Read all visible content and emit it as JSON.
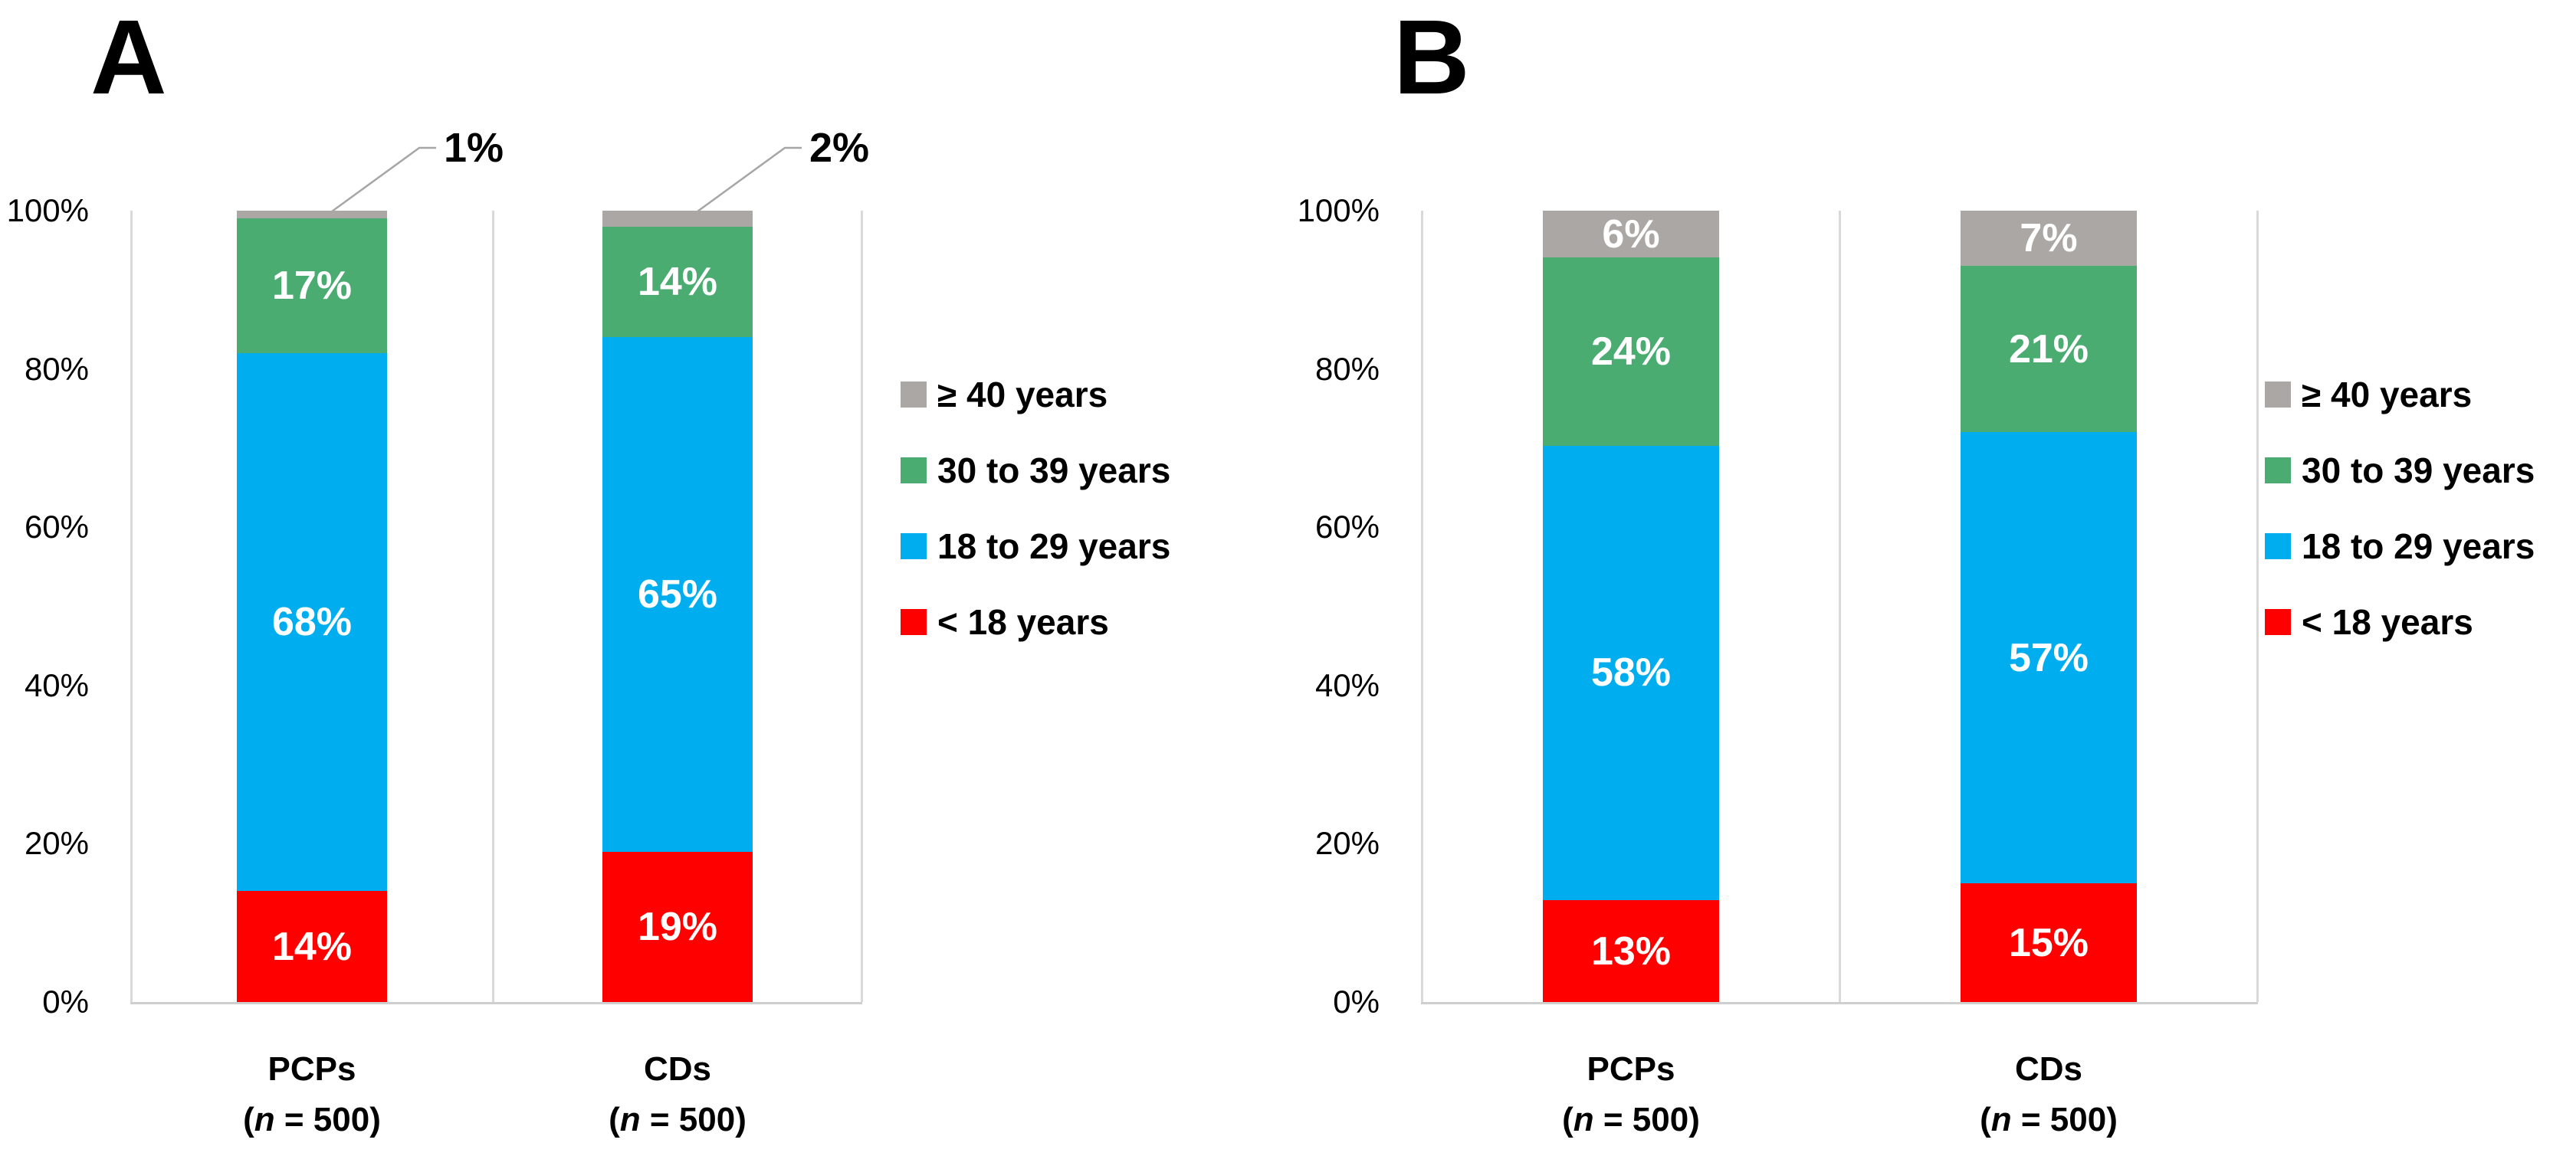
{
  "page": {
    "background": "#ffffff"
  },
  "colors": {
    "red": "#fe0000",
    "blue": "#00aeef",
    "green": "#4bac72",
    "gray": "#aba7a4",
    "plot_border": "#d9d9d9",
    "baseline": "#cfcfcf",
    "leader_line": "#a6a6a6",
    "axis_text": "#000000",
    "segment_label_text": "#ffffff"
  },
  "legend": {
    "items": [
      {
        "label": "≥ 40 years",
        "color_key": "gray"
      },
      {
        "label": "30 to 39 years",
        "color_key": "green"
      },
      {
        "label": "18 to 29 years",
        "color_key": "blue"
      },
      {
        "label": "< 18 years",
        "color_key": "red"
      }
    ]
  },
  "chart_data": [
    {
      "type": "bar",
      "stacked": true,
      "panel_label": "A",
      "categories": [
        "PCPs",
        "CDs"
      ],
      "category_sublabels": [
        "(n = 500)",
        "(n = 500)"
      ],
      "series": [
        {
          "name": "< 18 years",
          "color_key": "red",
          "values": [
            14,
            19
          ],
          "labels": [
            "14%",
            "19%"
          ],
          "label_inside": [
            true,
            true
          ]
        },
        {
          "name": "18 to 29 years",
          "color_key": "blue",
          "values": [
            68,
            65
          ],
          "labels": [
            "68%",
            "65%"
          ],
          "label_inside": [
            true,
            true
          ]
        },
        {
          "name": "30 to 39 years",
          "color_key": "green",
          "values": [
            17,
            14
          ],
          "labels": [
            "17%",
            "14%"
          ],
          "label_inside": [
            true,
            true
          ]
        },
        {
          "name": "≥ 40 years",
          "color_key": "gray",
          "values": [
            1,
            2
          ],
          "labels": [
            "1%",
            "2%"
          ],
          "label_inside": [
            false,
            false
          ]
        }
      ],
      "callouts": [
        {
          "category_index": 0,
          "text": "1%"
        },
        {
          "category_index": 1,
          "text": "2%"
        }
      ],
      "y_axis": {
        "min": 0,
        "max": 100,
        "ticks": [
          "0%",
          "20%",
          "40%",
          "60%",
          "80%",
          "100%"
        ]
      },
      "grid": false,
      "legend_position": "right"
    },
    {
      "type": "bar",
      "stacked": true,
      "panel_label": "B",
      "categories": [
        "PCPs",
        "CDs"
      ],
      "category_sublabels": [
        "(n = 500)",
        "(n = 500)"
      ],
      "series": [
        {
          "name": "< 18 years",
          "color_key": "red",
          "values": [
            13,
            15
          ],
          "labels": [
            "13%",
            "15%"
          ],
          "label_inside": [
            true,
            true
          ]
        },
        {
          "name": "18 to 29 years",
          "color_key": "blue",
          "values": [
            58,
            57
          ],
          "labels": [
            "58%",
            "57%"
          ],
          "label_inside": [
            true,
            true
          ]
        },
        {
          "name": "30 to 39 years",
          "color_key": "green",
          "values": [
            24,
            21
          ],
          "labels": [
            "24%",
            "21%"
          ],
          "label_inside": [
            true,
            true
          ]
        },
        {
          "name": "≥ 40 years",
          "color_key": "gray",
          "values": [
            6,
            7
          ],
          "labels": [
            "6%",
            "7%"
          ],
          "label_inside": [
            true,
            true
          ]
        }
      ],
      "callouts": [],
      "y_axis": {
        "min": 0,
        "max": 100,
        "ticks": [
          "0%",
          "20%",
          "40%",
          "60%",
          "80%",
          "100%"
        ]
      },
      "grid": false,
      "legend_position": "right"
    }
  ]
}
